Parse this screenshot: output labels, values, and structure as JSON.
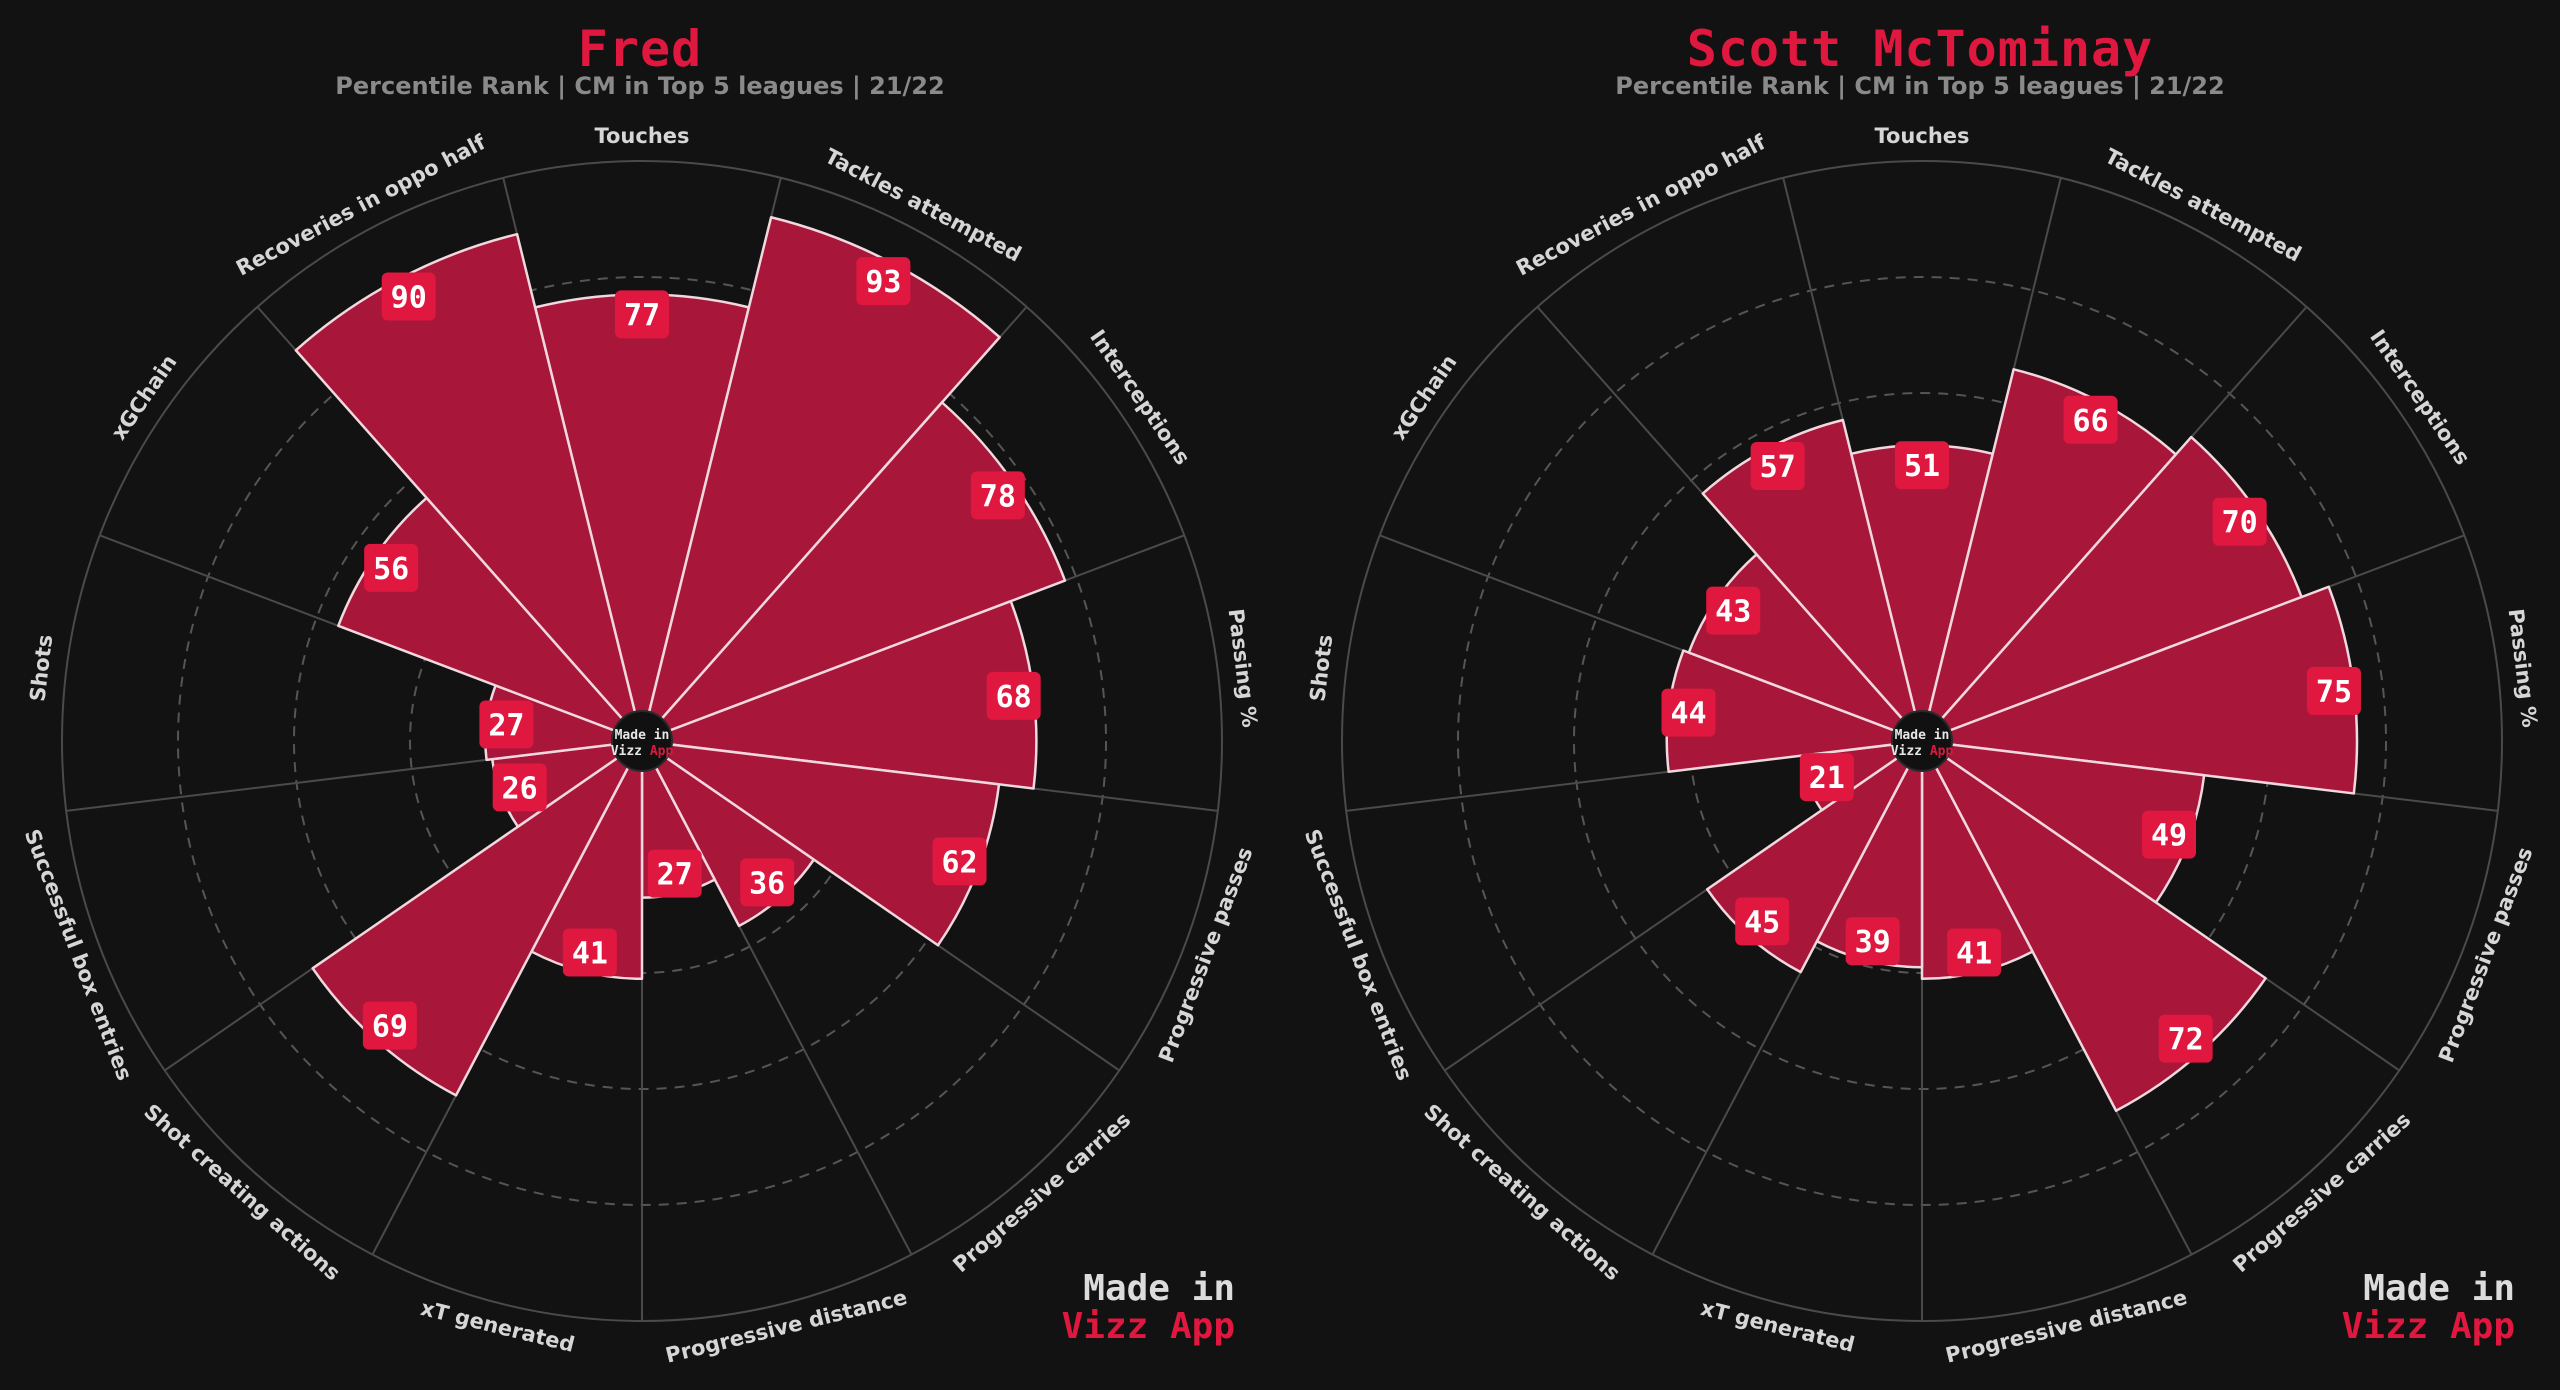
{
  "colors": {
    "background": "#121212",
    "bar": "#a8163a",
    "bar_edge": "#f0d8de",
    "label_box": "#e0173f",
    "title": "#e0173f",
    "subtitle": "#8a8a8a",
    "grid": "#555555",
    "axis_label": "#d6d6d6"
  },
  "brand": {
    "line1": "Made in",
    "line2": "Vizz App",
    "center_line1": "Made in",
    "center_line2a": "Vizz ",
    "center_line2b": "App"
  },
  "charts": [
    {
      "title": "Fred",
      "subtitle": "Percentile Rank | CM in Top 5 leagues | 21/22"
    },
    {
      "title": "Scott McTominay",
      "subtitle": "Percentile Rank | CM in Top 5 leagues | 21/22"
    }
  ],
  "chart_data": [
    {
      "type": "bar",
      "polar": true,
      "title": "Fred",
      "subtitle": "Percentile Rank | CM in Top 5 leagues | 21/22",
      "categories": [
        "Touches",
        "Tackles attempted",
        "Interceptions",
        "Passing %",
        "Progressive passes",
        "Progressive carries",
        "Progressive distance",
        "xT generated",
        "Shot creating actions",
        "Successful box entries",
        "Shots",
        "xGChain",
        "Recoveries in oppo half"
      ],
      "values": [
        77,
        93,
        78,
        68,
        62,
        36,
        27,
        41,
        69,
        26,
        27,
        56,
        90
      ],
      "ylim": [
        0,
        100
      ],
      "grid": true
    },
    {
      "type": "bar",
      "polar": true,
      "title": "Scott McTominay",
      "subtitle": "Percentile Rank | CM in Top 5 leagues | 21/22",
      "categories": [
        "Touches",
        "Tackles attempted",
        "Interceptions",
        "Passing %",
        "Progressive passes",
        "Progressive carries",
        "Progressive distance",
        "xT generated",
        "Shot creating actions",
        "Successful box entries",
        "Shots",
        "xGChain",
        "Recoveries in oppo half"
      ],
      "values": [
        51,
        66,
        70,
        75,
        49,
        72,
        41,
        39,
        45,
        21,
        44,
        43,
        57
      ],
      "ylim": [
        0,
        100
      ],
      "grid": true
    }
  ]
}
